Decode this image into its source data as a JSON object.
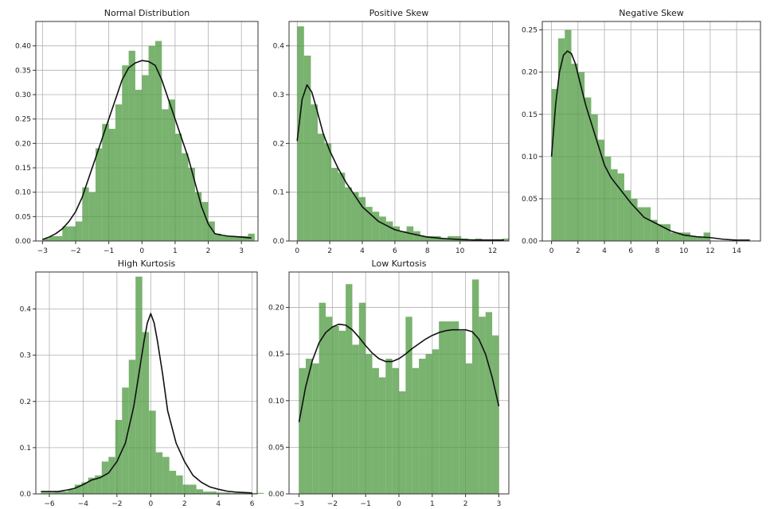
{
  "chart_data": [
    {
      "type": "bar",
      "title": "Normal Distribution",
      "xlim": [
        -3.2,
        3.5
      ],
      "ylim": [
        0,
        0.45
      ],
      "xticks": [
        -3,
        -2,
        -1,
        0,
        1,
        2,
        3
      ],
      "yticks": [
        0.0,
        0.05,
        0.1,
        0.15,
        0.2,
        0.25,
        0.3,
        0.35,
        0.4
      ],
      "ytick_labels": [
        "0.00",
        "0.05",
        "0.10",
        "0.15",
        "0.20",
        "0.25",
        "0.30",
        "0.35",
        "0.40"
      ],
      "grid": true,
      "bins": {
        "start": -3.0,
        "width": 0.2
      },
      "values": [
        0.005,
        0.01,
        0.01,
        0.03,
        0.03,
        0.04,
        0.11,
        0.1,
        0.19,
        0.24,
        0.23,
        0.28,
        0.36,
        0.39,
        0.31,
        0.34,
        0.4,
        0.41,
        0.27,
        0.29,
        0.22,
        0.18,
        0.15,
        0.1,
        0.08,
        0.04,
        0.015,
        0.01,
        0.01,
        0.01,
        0.01,
        0.015
      ],
      "kde": {
        "x": [
          -3.0,
          -2.8,
          -2.6,
          -2.4,
          -2.2,
          -2.0,
          -1.8,
          -1.6,
          -1.4,
          -1.2,
          -1.0,
          -0.8,
          -0.6,
          -0.4,
          -0.2,
          0.0,
          0.2,
          0.4,
          0.6,
          0.8,
          1.0,
          1.2,
          1.4,
          1.6,
          1.8,
          2.0,
          2.2,
          2.4,
          2.6,
          2.8,
          3.0,
          3.3
        ],
        "y": [
          0.003,
          0.008,
          0.015,
          0.025,
          0.04,
          0.06,
          0.09,
          0.13,
          0.17,
          0.21,
          0.25,
          0.29,
          0.33,
          0.355,
          0.365,
          0.37,
          0.368,
          0.36,
          0.33,
          0.29,
          0.25,
          0.21,
          0.17,
          0.12,
          0.07,
          0.035,
          0.015,
          0.012,
          0.01,
          0.009,
          0.008,
          0.006
        ]
      }
    },
    {
      "type": "bar",
      "title": "Positive Skew",
      "xlim": [
        -0.5,
        13.0
      ],
      "ylim": [
        0,
        0.45
      ],
      "xticks": [
        0,
        2,
        4,
        6,
        8,
        10,
        12
      ],
      "yticks": [
        0.0,
        0.1,
        0.2,
        0.3,
        0.4
      ],
      "ytick_labels": [
        "0.0",
        "0.1",
        "0.2",
        "0.3",
        "0.4"
      ],
      "grid": true,
      "bins": {
        "start": 0.0,
        "width": 0.42
      },
      "values": [
        0.44,
        0.38,
        0.28,
        0.22,
        0.2,
        0.15,
        0.14,
        0.11,
        0.1,
        0.09,
        0.07,
        0.06,
        0.05,
        0.04,
        0.03,
        0.02,
        0.03,
        0.02,
        0.01,
        0.01,
        0.01,
        0.005,
        0.01,
        0.01,
        0.005,
        0.0,
        0.005,
        0.0,
        0.0,
        0.0,
        0.005
      ],
      "kde": {
        "x": [
          0.0,
          0.3,
          0.6,
          0.9,
          1.2,
          1.6,
          2.0,
          2.5,
          3.0,
          3.5,
          4.0,
          4.5,
          5.0,
          6.0,
          7.0,
          8.0,
          9.0,
          10.0,
          11.0,
          12.0,
          12.7
        ],
        "y": [
          0.205,
          0.29,
          0.32,
          0.305,
          0.27,
          0.22,
          0.185,
          0.15,
          0.12,
          0.095,
          0.07,
          0.055,
          0.04,
          0.023,
          0.015,
          0.008,
          0.005,
          0.003,
          0.002,
          0.002,
          0.002
        ]
      }
    },
    {
      "type": "bar",
      "title": "Negative Skew",
      "xlim": [
        -0.7,
        15.8
      ],
      "ylim": [
        0,
        0.26
      ],
      "xticks": [
        0,
        2,
        4,
        6,
        8,
        10,
        12,
        14
      ],
      "yticks": [
        0.0,
        0.05,
        0.1,
        0.15,
        0.2,
        0.25
      ],
      "ytick_labels": [
        "0.00",
        "0.05",
        "0.10",
        "0.15",
        "0.20",
        "0.25"
      ],
      "grid": true,
      "bins": {
        "start": 0.0,
        "width": 0.5
      },
      "values": [
        0.18,
        0.24,
        0.25,
        0.21,
        0.2,
        0.17,
        0.15,
        0.12,
        0.1,
        0.085,
        0.08,
        0.06,
        0.05,
        0.04,
        0.04,
        0.025,
        0.02,
        0.02,
        0.01,
        0.01,
        0.01,
        0.005,
        0.005,
        0.01
      ],
      "kde": {
        "x": [
          0.0,
          0.3,
          0.6,
          0.9,
          1.2,
          1.5,
          1.8,
          2.2,
          2.6,
          3.0,
          3.5,
          4.0,
          4.5,
          5.0,
          5.5,
          6.0,
          7.0,
          8.0,
          9.0,
          10.0,
          11.0,
          12.0,
          13.0,
          14.0,
          15.0
        ],
        "y": [
          0.1,
          0.16,
          0.2,
          0.22,
          0.225,
          0.222,
          0.21,
          0.185,
          0.16,
          0.14,
          0.115,
          0.09,
          0.075,
          0.065,
          0.055,
          0.045,
          0.028,
          0.02,
          0.012,
          0.007,
          0.005,
          0.004,
          0.002,
          0.001,
          0.001
        ]
      }
    },
    {
      "type": "bar",
      "title": "High Kurtosis",
      "xlim": [
        -6.8,
        6.3
      ],
      "ylim": [
        0,
        0.48
      ],
      "xticks": [
        -6,
        -4,
        -2,
        0,
        2,
        4,
        6
      ],
      "yticks": [
        0.0,
        0.1,
        0.2,
        0.3,
        0.4
      ],
      "ytick_labels": [
        "0.0",
        "0.1",
        "0.2",
        "0.3",
        "0.4"
      ],
      "grid": true,
      "bins": {
        "start": -6.5,
        "width": 0.4
      },
      "values": [
        0.003,
        0.003,
        0.005,
        0.005,
        0.01,
        0.02,
        0.025,
        0.035,
        0.04,
        0.07,
        0.08,
        0.16,
        0.23,
        0.29,
        0.47,
        0.35,
        0.18,
        0.09,
        0.08,
        0.05,
        0.04,
        0.02,
        0.02,
        0.01,
        0.005,
        0.005,
        0.003,
        0.003,
        0.002,
        0.002,
        0.002,
        0.002,
        0.002
      ],
      "kde": {
        "x": [
          -6.5,
          -5.5,
          -5.0,
          -4.5,
          -4.0,
          -3.5,
          -3.0,
          -2.5,
          -2.0,
          -1.5,
          -1.0,
          -0.7,
          -0.4,
          -0.2,
          0.0,
          0.2,
          0.4,
          0.7,
          1.0,
          1.5,
          2.0,
          2.5,
          3.0,
          3.5,
          4.0,
          4.5,
          5.0,
          6.0
        ],
        "y": [
          0.005,
          0.005,
          0.008,
          0.012,
          0.02,
          0.03,
          0.035,
          0.045,
          0.07,
          0.11,
          0.19,
          0.26,
          0.33,
          0.37,
          0.39,
          0.37,
          0.33,
          0.26,
          0.18,
          0.11,
          0.07,
          0.04,
          0.025,
          0.015,
          0.01,
          0.006,
          0.004,
          0.002
        ]
      }
    },
    {
      "type": "bar",
      "title": "Low Kurtosis",
      "xlim": [
        -3.3,
        3.3
      ],
      "ylim": [
        0,
        0.238
      ],
      "xticks": [
        -3,
        -2,
        -1,
        0,
        1,
        2,
        3
      ],
      "yticks": [
        0.0,
        0.05,
        0.1,
        0.15,
        0.2
      ],
      "ytick_labels": [
        "0.00",
        "0.05",
        "0.10",
        "0.15",
        "0.20"
      ],
      "grid": true,
      "bins": {
        "start": -3.0,
        "width": 0.2
      },
      "values": [
        0.135,
        0.145,
        0.14,
        0.205,
        0.19,
        0.18,
        0.175,
        0.225,
        0.16,
        0.205,
        0.15,
        0.135,
        0.125,
        0.145,
        0.135,
        0.11,
        0.19,
        0.135,
        0.145,
        0.15,
        0.155,
        0.185,
        0.185,
        0.185,
        0.175,
        0.14,
        0.23,
        0.19,
        0.195,
        0.17
      ],
      "kde": {
        "x": [
          -3.0,
          -2.8,
          -2.6,
          -2.4,
          -2.2,
          -2.0,
          -1.8,
          -1.6,
          -1.4,
          -1.2,
          -1.0,
          -0.8,
          -0.6,
          -0.4,
          -0.2,
          0.0,
          0.2,
          0.4,
          0.6,
          0.8,
          1.0,
          1.2,
          1.4,
          1.6,
          1.8,
          2.0,
          2.2,
          2.4,
          2.6,
          2.8,
          3.0
        ],
        "y": [
          0.077,
          0.115,
          0.143,
          0.162,
          0.173,
          0.179,
          0.182,
          0.181,
          0.176,
          0.168,
          0.159,
          0.151,
          0.145,
          0.142,
          0.142,
          0.145,
          0.15,
          0.156,
          0.161,
          0.166,
          0.17,
          0.173,
          0.175,
          0.176,
          0.176,
          0.176,
          0.174,
          0.166,
          0.15,
          0.125,
          0.094
        ]
      }
    }
  ]
}
